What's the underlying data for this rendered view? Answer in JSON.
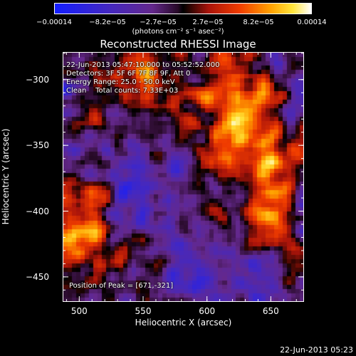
{
  "chart_data": {
    "type": "heatmap",
    "title": "Reconstructed RHESSI Image",
    "xlabel": "Heliocentric X (arcsec)",
    "ylabel": "Heliocentric Y (arcsec)",
    "xlim": [
      487,
      676
    ],
    "ylim": [
      -469,
      -279
    ],
    "x_ticks": [
      500,
      550,
      600,
      650
    ],
    "y_ticks": [
      -300,
      -350,
      -400,
      -450
    ],
    "x_tick_labels": [
      "500",
      "550",
      "600",
      "650"
    ],
    "y_tick_labels": [
      "−300",
      "−350",
      "−400",
      "−450"
    ],
    "colorbar": {
      "colormap": "blue-purple-red-yellow-white",
      "range": [
        -0.00014,
        0.00014
      ],
      "tick_values": [
        -0.00014,
        -8.2e-05,
        -2.7e-05,
        2.7e-05,
        8.2e-05,
        0.00014
      ],
      "tick_labels": [
        "−0.00014",
        "−8.2e−05",
        "−2.7e−05",
        "2.7e−05",
        "8.2e−05",
        "0.00014"
      ],
      "units": "(photons cm⁻² s⁻¹ asec⁻²)"
    },
    "peak": [
      671,
      -321
    ],
    "grid": false
  },
  "annotations": {
    "time_range": "22-Jun-2013 05:47:10.000 to 05:52:52.000",
    "detectors": "Detectors: 3F 5F 6F 7F 8F 9F, Att 0",
    "energy": "Energy Range: 25.0 - 50.0 keV",
    "clean": "Clean    Total counts: 7.33E+03",
    "peak_text": "Position of Peak = [671,-321]"
  },
  "footer": {
    "timestamp": "22-Jun-2013 05:23"
  }
}
